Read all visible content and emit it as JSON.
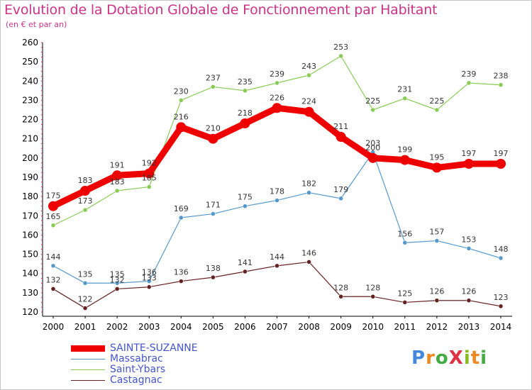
{
  "title": "Evolution de la Dotation Globale de Fonctionnement par Habitant",
  "subtitle": "(en € et par an)",
  "logo_text": "ProXiti",
  "chart_data": {
    "type": "line",
    "title": "Evolution de la Dotation Globale de Fonctionnement par Habitant",
    "subtitle": "(en € et par an)",
    "xlabel": "",
    "ylabel": "",
    "x": [
      "2000",
      "2001",
      "2002",
      "2003",
      "2004",
      "2005",
      "2006",
      "2007",
      "2008",
      "2009",
      "2010",
      "2011",
      "2012",
      "2013",
      "2014"
    ],
    "ylim": [
      120,
      260
    ],
    "yticks": [
      120,
      130,
      140,
      150,
      160,
      170,
      180,
      190,
      200,
      210,
      220,
      230,
      240,
      250,
      260
    ],
    "grid": false,
    "legend_position": "bottom-left",
    "series": [
      {
        "name": "SAINTE-SUZANNE",
        "color": "#ee0000",
        "values": [
          175,
          183,
          191,
          192,
          216,
          210,
          218,
          226,
          224,
          211,
          200,
          199,
          195,
          197,
          197
        ]
      },
      {
        "name": "Massabrac",
        "color": "#5599cc",
        "values": [
          144,
          135,
          135,
          136,
          169,
          171,
          175,
          178,
          182,
          179,
          203,
          156,
          157,
          153,
          148
        ]
      },
      {
        "name": "Saint-Ybars",
        "color": "#88cc55",
        "values": [
          165,
          173,
          183,
          185,
          230,
          237,
          235,
          239,
          243,
          253,
          225,
          231,
          225,
          239,
          238
        ]
      },
      {
        "name": "Castagnac",
        "color": "#662222",
        "values": [
          132,
          122,
          132,
          133,
          136,
          138,
          141,
          144,
          146,
          128,
          128,
          125,
          126,
          126,
          123
        ]
      }
    ]
  }
}
